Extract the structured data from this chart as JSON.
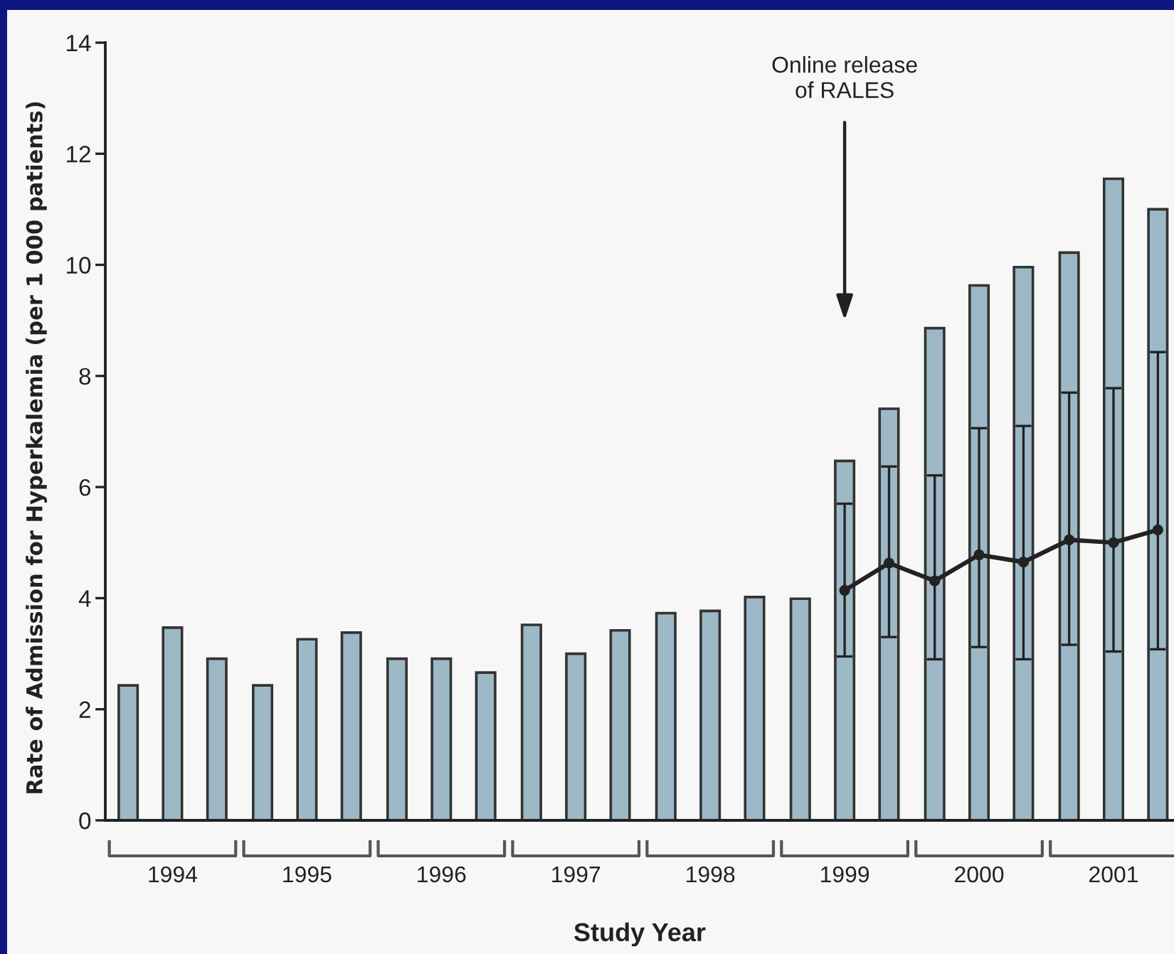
{
  "chart_data": {
    "type": "bar",
    "xlabel": "Study Year",
    "ylabel": "Rate of Admission for Hyperkalemia (per 1 000 patients)",
    "x": [
      1994.17,
      1994.5,
      1994.83,
      1995.17,
      1995.5,
      1995.83,
      1996.17,
      1996.5,
      1996.83,
      1997.17,
      1997.5,
      1997.83,
      1998.17,
      1998.5,
      1998.83,
      1999.17,
      1999.5,
      1999.83,
      2000.17,
      2000.5,
      2000.83,
      2001.17,
      2001.5,
      2001.83
    ],
    "series": [
      {
        "color": "#9db8c6",
        "values": [
          2.43,
          3.47,
          2.91,
          2.43,
          3.26,
          3.38,
          2.91,
          2.91,
          2.66,
          3.52,
          3.0,
          3.42,
          3.73,
          3.77,
          4.02,
          3.99,
          6.47,
          7.41,
          8.86,
          9.63,
          9.96,
          10.22,
          11.55,
          11.0
        ]
      },
      {
        "type": "line",
        "color": "#222222",
        "marker": "circle",
        "line_style": "solid",
        "x": [
          1999.5,
          1999.83,
          2000.17,
          2000.5,
          2000.83,
          2001.17,
          2001.5,
          2001.83
        ],
        "values": [
          4.14,
          4.63,
          4.31,
          4.78,
          4.65,
          5.05,
          5.0,
          5.23
        ],
        "errors": [
          [
            2.95,
            5.7
          ],
          [
            3.3,
            6.37
          ],
          [
            2.9,
            6.21
          ],
          [
            3.12,
            7.06
          ],
          [
            2.9,
            7.1
          ],
          [
            3.16,
            7.7
          ],
          [
            3.04,
            7.78
          ],
          [
            3.08,
            8.43
          ]
        ]
      }
    ],
    "xlim": [
      1994,
      2001.95
    ],
    "xticks": [
      {
        "value": 1994.5,
        "label": "1994"
      },
      {
        "value": 1995.5,
        "label": "1995"
      },
      {
        "value": 1996.5,
        "label": "1996"
      },
      {
        "value": 1997.5,
        "label": "1997"
      },
      {
        "value": 1998.5,
        "label": "1998"
      },
      {
        "value": 1999.5,
        "label": "1999"
      },
      {
        "value": 2000.5,
        "label": "2000"
      },
      {
        "value": 2001.5,
        "label": "2001"
      }
    ],
    "ylim": [
      0,
      14
    ],
    "yticks": [
      0,
      2,
      4,
      6,
      8,
      10,
      12,
      14
    ],
    "annotations": [
      "Online release\nof RALES"
    ]
  }
}
